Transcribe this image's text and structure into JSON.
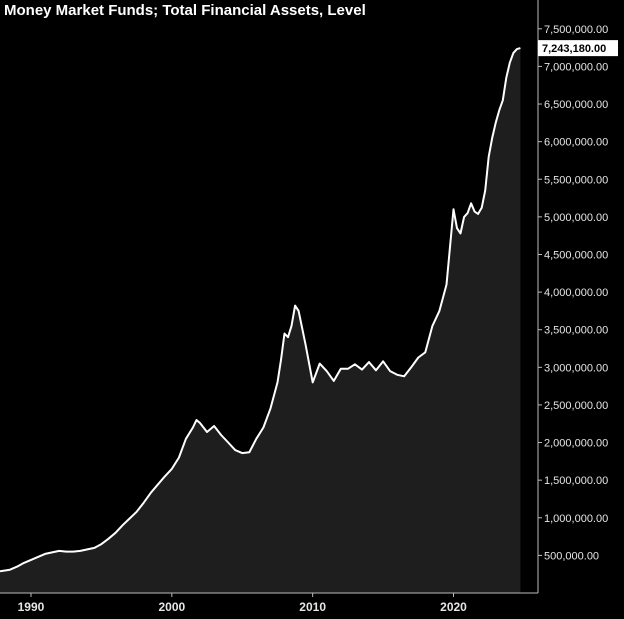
{
  "chart_data": {
    "type": "area",
    "title": "Money Market Funds; Total Financial Assets, Level",
    "xlabel": "",
    "ylabel": "",
    "xlim": [
      1987.8,
      2026.0
    ],
    "ylim": [
      0,
      7750000
    ],
    "grid": false,
    "last_value_label": "7,243,180.00",
    "y_ticks": [
      {
        "value": 500000,
        "label": "500,000.00"
      },
      {
        "value": 1000000,
        "label": "1,000,000.00"
      },
      {
        "value": 1500000,
        "label": "1,500,000.00"
      },
      {
        "value": 2000000,
        "label": "2,000,000.00"
      },
      {
        "value": 2500000,
        "label": "2,500,000.00"
      },
      {
        "value": 3000000,
        "label": "3,000,000.00"
      },
      {
        "value": 3500000,
        "label": "3,500,000.00"
      },
      {
        "value": 4000000,
        "label": "4,000,000.00"
      },
      {
        "value": 4500000,
        "label": "4,500,000.00"
      },
      {
        "value": 5000000,
        "label": "5,000,000.00"
      },
      {
        "value": 5500000,
        "label": "5,500,000.00"
      },
      {
        "value": 6000000,
        "label": "6,000,000.00"
      },
      {
        "value": 6500000,
        "label": "6,500,000.00"
      },
      {
        "value": 7000000,
        "label": "7,000,000.00"
      },
      {
        "value": 7500000,
        "label": "7,500,000.00"
      }
    ],
    "x_ticks": [
      {
        "value": 1990,
        "label": "1990"
      },
      {
        "value": 2000,
        "label": "2000"
      },
      {
        "value": 2010,
        "label": "2010"
      },
      {
        "value": 2020,
        "label": "2020"
      }
    ],
    "colors": {
      "background": "#000000",
      "line": "#ffffff",
      "fill": "#1e1e1e",
      "axis": "#bbbbbb",
      "text": "#e6e6e6"
    },
    "series": [
      {
        "x": [
          1987.8,
          1988.5,
          1989.0,
          1989.5,
          1990.0,
          1990.5,
          1991.0,
          1991.5,
          1992.0,
          1992.5,
          1993.0,
          1993.5,
          1994.0,
          1994.5,
          1995.0,
          1995.5,
          1996.0,
          1996.5,
          1997.0,
          1997.5,
          1998.0,
          1998.5,
          1999.0,
          1999.5,
          2000.0,
          2000.5,
          2001.0,
          2001.5,
          2001.75,
          2002.0,
          2002.5,
          2003.0,
          2003.5,
          2004.0,
          2004.5,
          2005.0,
          2005.5,
          2006.0,
          2006.5,
          2007.0,
          2007.5,
          2007.75,
          2008.0,
          2008.25,
          2008.5,
          2008.75,
          2009.0,
          2009.5,
          2010.0,
          2010.5,
          2011.0,
          2011.5,
          2012.0,
          2012.5,
          2013.0,
          2013.5,
          2014.0,
          2014.5,
          2015.0,
          2015.5,
          2016.0,
          2016.5,
          2017.0,
          2017.5,
          2018.0,
          2018.5,
          2019.0,
          2019.5,
          2019.75,
          2020.0,
          2020.25,
          2020.5,
          2020.75,
          2021.0,
          2021.25,
          2021.5,
          2021.75,
          2022.0,
          2022.25,
          2022.5,
          2022.75,
          2023.0,
          2023.25,
          2023.5,
          2023.75,
          2024.0,
          2024.25,
          2024.5,
          2024.75
        ],
        "values": [
          290000,
          310000,
          350000,
          400000,
          440000,
          480000,
          520000,
          540000,
          560000,
          550000,
          550000,
          560000,
          580000,
          600000,
          650000,
          720000,
          800000,
          900000,
          990000,
          1080000,
          1200000,
          1330000,
          1440000,
          1550000,
          1650000,
          1800000,
          2050000,
          2200000,
          2300000,
          2260000,
          2140000,
          2220000,
          2100000,
          2000000,
          1900000,
          1860000,
          1870000,
          2050000,
          2200000,
          2450000,
          2800000,
          3100000,
          3450000,
          3400000,
          3550000,
          3820000,
          3750000,
          3300000,
          2800000,
          3050000,
          2950000,
          2820000,
          2980000,
          2980000,
          3040000,
          2970000,
          3070000,
          2960000,
          3080000,
          2950000,
          2900000,
          2880000,
          3000000,
          3130000,
          3200000,
          3550000,
          3750000,
          4100000,
          4600000,
          5100000,
          4850000,
          4780000,
          5000000,
          5050000,
          5180000,
          5070000,
          5040000,
          5120000,
          5350000,
          5800000,
          6050000,
          6250000,
          6420000,
          6550000,
          6850000,
          7050000,
          7180000,
          7230000,
          7243180
        ]
      }
    ]
  }
}
